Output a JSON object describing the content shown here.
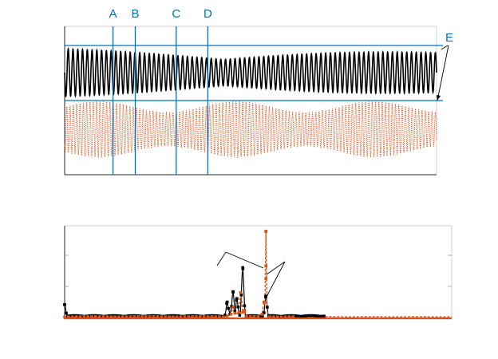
{
  "colors": {
    "black_signal": "#000000",
    "orange_signal": "#D95319",
    "marker_lines": "#0072BD",
    "axes": "#262626",
    "tick_gray": "#b0b0b0"
  },
  "chart_data": [
    {
      "type": "line",
      "panel": "time-domain",
      "title": "",
      "xlabel": "",
      "ylabel": "",
      "series": [
        {
          "role": "upper",
          "color": "#000000",
          "style": "solid"
        },
        {
          "role": "lower",
          "color": "#D95319",
          "style": "dotted"
        }
      ],
      "markers": [
        {
          "label": "A",
          "x": 0.13
        },
        {
          "label": "B",
          "x": 0.19
        },
        {
          "label": "C",
          "x": 0.3
        },
        {
          "label": "D",
          "x": 0.385
        }
      ],
      "horizontal_markers": {
        "label": "E",
        "y": [
          0.84,
          0.47
        ]
      },
      "grid": false,
      "legend": "none"
    },
    {
      "type": "line",
      "panel": "spectrum",
      "title": "",
      "xlabel": "",
      "ylabel": "",
      "ylim": [
        0,
        1
      ],
      "series": [
        {
          "color": "#000000",
          "style": "solid-with-markers",
          "peaks": [
            {
              "x": 0.0,
              "y": 0.15
            },
            {
              "x": 0.42,
              "y": 0.18
            },
            {
              "x": 0.435,
              "y": 0.3
            },
            {
              "x": 0.445,
              "y": 0.22
            },
            {
              "x": 0.46,
              "y": 0.58
            },
            {
              "x": 0.52,
              "y": 0.25
            }
          ]
        },
        {
          "color": "#D95319",
          "style": "dashed-with-markers",
          "peaks": [
            {
              "x": 0.435,
              "y": 0.12
            },
            {
              "x": 0.455,
              "y": 0.29
            },
            {
              "x": 0.465,
              "y": 0.08
            },
            {
              "x": 0.515,
              "y": 0.18
            },
            {
              "x": 0.52,
              "y": 1.0
            }
          ]
        }
      ],
      "grid": false,
      "legend": "none"
    }
  ]
}
